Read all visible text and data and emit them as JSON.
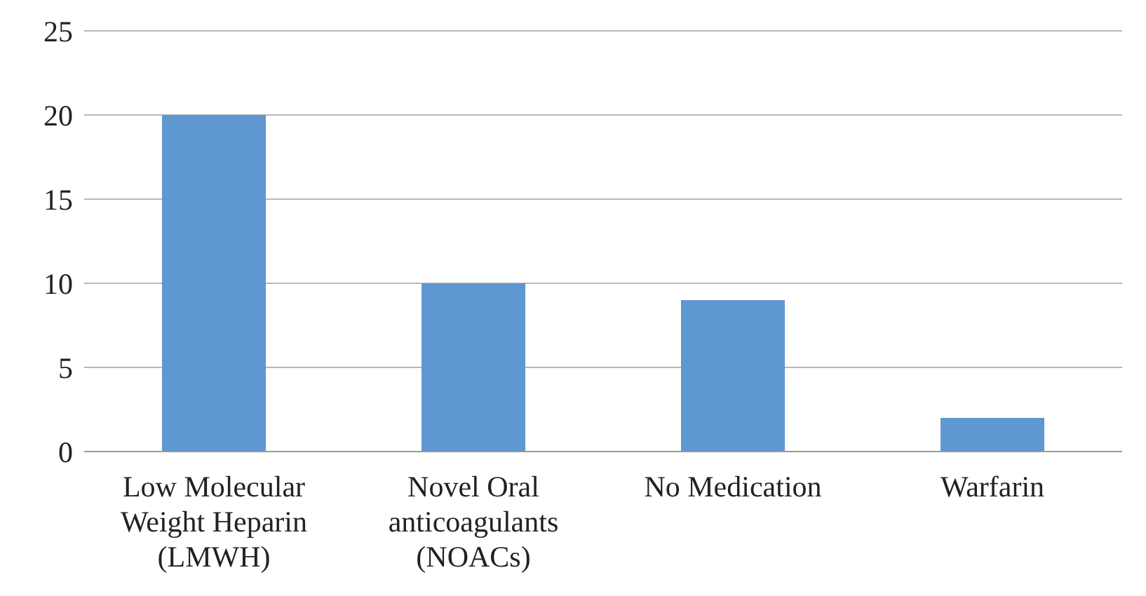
{
  "chart_data": {
    "type": "bar",
    "categories": [
      "Low Molecular Weight Heparin (LMWH)",
      "Novel Oral anticoagulants (NOACs)",
      "No Medication",
      "Warfarin"
    ],
    "values": [
      20,
      10,
      9,
      2
    ],
    "color": "#5f97d0",
    "ylim": [
      0,
      25
    ],
    "yticks": [
      0,
      5,
      10,
      15,
      20,
      25
    ],
    "grid": "y"
  }
}
